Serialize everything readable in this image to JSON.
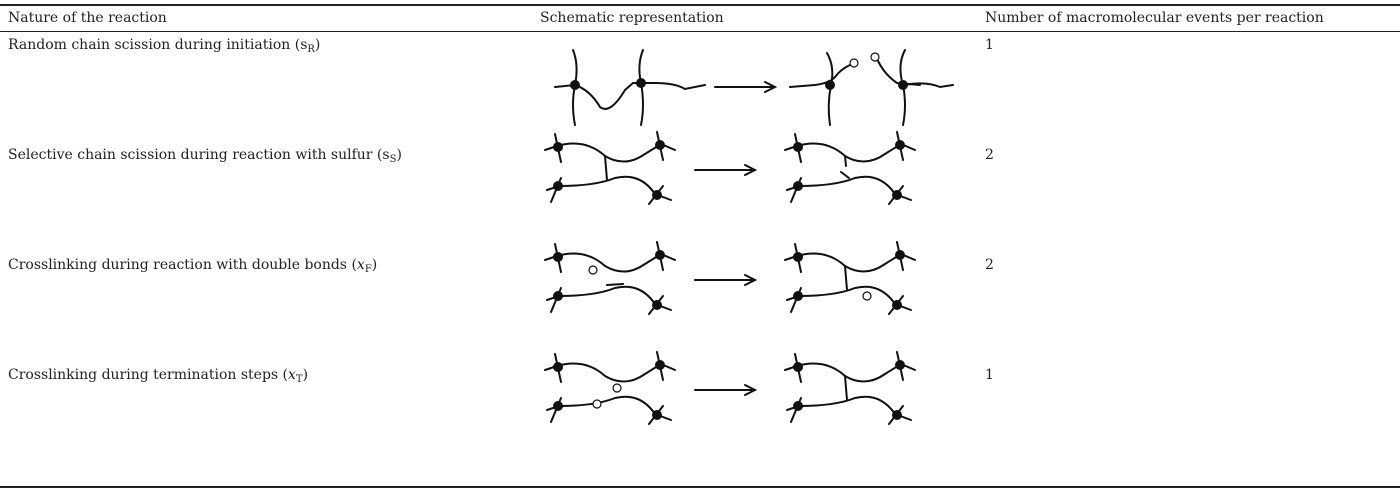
{
  "table": {
    "header": [
      "Nature of the reaction",
      "Schematic representation",
      "Number of macromolecular events per reaction"
    ],
    "rows": [
      {
        "prefix": "Random chain scission during initiation (",
        "symbol": "s",
        "subscript": "R",
        "suffix": ")",
        "events": 1
      },
      {
        "prefix": "Selective chain scission during reaction with sulfur (",
        "symbol": "s",
        "subscript": "S",
        "suffix": ")",
        "events": 2
      },
      {
        "prefix": "Crosslinking during reaction with double bonds (",
        "symbol": "x",
        "subscript": "F",
        "suffix": ")",
        "events": 2
      },
      {
        "prefix": "Crosslinking during termination steps (",
        "symbol": "x",
        "subscript": "T",
        "suffix": ")",
        "events": 1
      }
    ]
  }
}
